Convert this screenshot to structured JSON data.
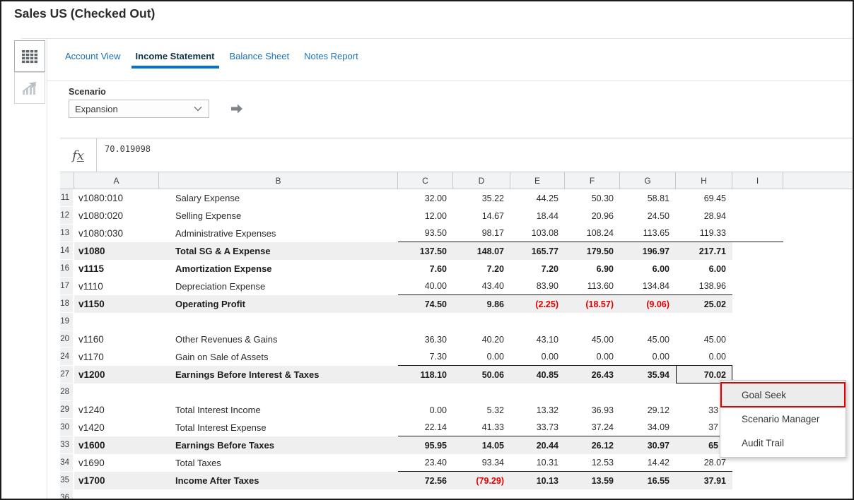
{
  "window": {
    "title": "Sales US (Checked Out)"
  },
  "colors": {
    "accent_blue": "#0572ce",
    "negative_red": "#e60000",
    "menu_highlight_red": "#e60000",
    "shaded_row": "#efefef"
  },
  "sidebar": {
    "buttons": [
      {
        "name": "grid-view"
      },
      {
        "name": "chart-view"
      }
    ]
  },
  "tabs": {
    "items": [
      "Account View",
      "Income Statement",
      "Balance Sheet",
      "Notes Report"
    ],
    "active": "Income Statement"
  },
  "scenario": {
    "label": "Scenario",
    "value": "Expansion"
  },
  "formula_bar": {
    "icon": "fx",
    "value": "70.019098"
  },
  "grid": {
    "column_headers": [
      "",
      "A",
      "B",
      "C",
      "D",
      "E",
      "F",
      "G",
      "H",
      "I",
      ""
    ],
    "selected_cell": {
      "row": "27",
      "col": "H",
      "value": "70.02"
    },
    "rows": [
      {
        "num": "11",
        "account": "v1080:010",
        "label": "Salary Expense",
        "values": [
          "32.00",
          "35.22",
          "44.25",
          "50.30",
          "58.81",
          "69.45"
        ]
      },
      {
        "num": "12",
        "account": "v1080:020",
        "label": "Selling Expense",
        "values": [
          "12.00",
          "14.67",
          "18.44",
          "20.96",
          "24.50",
          "28.94"
        ]
      },
      {
        "num": "13",
        "account": "v1080:030",
        "label": "Administrative Expenses",
        "values": [
          "93.50",
          "98.17",
          "103.08",
          "108.24",
          "113.65",
          "119.33"
        ],
        "underline": "CI"
      },
      {
        "num": "14",
        "account": "v1080",
        "label": "Total SG & A Expense",
        "values": [
          "137.50",
          "148.07",
          "165.77",
          "179.50",
          "196.97",
          "217.71"
        ],
        "bold": true,
        "shaded": true
      },
      {
        "num": "16",
        "account": "v1115",
        "label": "Amortization Expense",
        "values": [
          "7.60",
          "7.20",
          "7.20",
          "6.90",
          "6.00",
          "6.00"
        ],
        "bold": true
      },
      {
        "num": "17",
        "account": "v1110",
        "label": "Depreciation Expense",
        "values": [
          "40.00",
          "43.40",
          "83.90",
          "113.60",
          "134.84",
          "138.96"
        ],
        "underline": "CH"
      },
      {
        "num": "18",
        "account": "v1150",
        "label": "Operating Profit",
        "values": [
          "74.50",
          "9.86",
          "(2.25)",
          "(18.57)",
          "(9.06)",
          "25.02"
        ],
        "bold": true,
        "shaded": true
      },
      {
        "num": "19",
        "account": "",
        "label": "",
        "values": []
      },
      {
        "num": "20",
        "account": "v1160",
        "label": "Other Revenues & Gains",
        "values": [
          "36.30",
          "40.20",
          "43.10",
          "45.00",
          "45.00",
          "45.00"
        ]
      },
      {
        "num": "24",
        "account": "v1170",
        "label": "Gain on Sale of Assets",
        "values": [
          "7.30",
          "0.00",
          "0.00",
          "0.00",
          "0.00",
          "0.00"
        ],
        "underline": "CH"
      },
      {
        "num": "27",
        "account": "v1200",
        "label": "Earnings Before Interest & Taxes",
        "values": [
          "118.10",
          "50.06",
          "40.85",
          "26.43",
          "35.94",
          "70.02"
        ],
        "bold": true,
        "shaded": true,
        "selected_col": 5
      },
      {
        "num": "28",
        "account": "",
        "label": "",
        "values": []
      },
      {
        "num": "29",
        "account": "v1240",
        "label": "Total Interest Income",
        "values": [
          "0.00",
          "5.32",
          "13.32",
          "36.93",
          "29.12",
          "33"
        ],
        "clip_last": true
      },
      {
        "num": "30",
        "account": "v1420",
        "label": "Total Interest Expense",
        "values": [
          "22.14",
          "41.33",
          "33.73",
          "37.24",
          "34.09",
          "37"
        ],
        "underline": "CH",
        "clip_last": true
      },
      {
        "num": "33",
        "account": "v1600",
        "label": "Earnings Before Taxes",
        "values": [
          "95.95",
          "14.05",
          "20.44",
          "26.12",
          "30.97",
          "65"
        ],
        "bold": true,
        "shaded": true,
        "clip_last": true
      },
      {
        "num": "34",
        "account": "v1690",
        "label": "Total Taxes",
        "values": [
          "23.40",
          "93.34",
          "10.31",
          "12.53",
          "14.42",
          "28.07"
        ],
        "underline": "CH"
      },
      {
        "num": "35",
        "account": "v1700",
        "label": "Income After Taxes",
        "values": [
          "72.56",
          "(79.29)",
          "10.13",
          "13.59",
          "16.55",
          "37.91"
        ],
        "bold": true,
        "shaded": true
      },
      {
        "num": "36",
        "account": "",
        "label": "",
        "values": []
      }
    ]
  },
  "context_menu": {
    "items": [
      {
        "label": "Goal Seek",
        "highlighted": true
      },
      {
        "label": "Scenario Manager",
        "highlighted": false
      },
      {
        "label": "Audit Trail",
        "highlighted": false
      }
    ]
  }
}
